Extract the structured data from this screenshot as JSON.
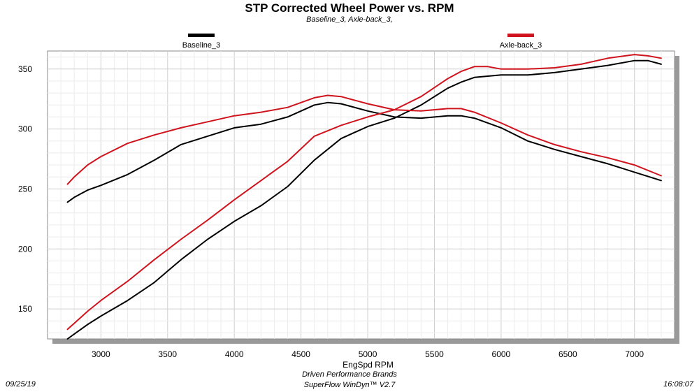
{
  "chart_data": {
    "type": "line",
    "title": "STP Corrected Wheel Power vs. RPM",
    "subtitle": "Baseline_3, Axle-back_3,",
    "xlabel": "EngSpd  RPM",
    "ylabel": "",
    "xlim": [
      2600,
      7300
    ],
    "ylim": [
      125,
      365
    ],
    "xticks": [
      3000,
      3500,
      4000,
      4500,
      5000,
      5500,
      6000,
      6500,
      7000
    ],
    "yticks": [
      150,
      200,
      250,
      300,
      350
    ],
    "grid": true,
    "legend_position": "top",
    "legend": [
      {
        "name": "Baseline_3",
        "color": "#000000"
      },
      {
        "name": "Axle-back_3",
        "color": "#d0141e"
      }
    ],
    "series": [
      {
        "name": "Baseline_3",
        "color": "#000000",
        "x": [
          2750,
          2800,
          2900,
          3000,
          3200,
          3400,
          3600,
          3800,
          4000,
          4200,
          4400,
          4600,
          4700,
          4800,
          5000,
          5200,
          5400,
          5600,
          5700,
          5800,
          6000,
          6200,
          6400,
          6600,
          6800,
          7000,
          7200
        ],
        "y": [
          239,
          243,
          249,
          253,
          262,
          274,
          287,
          294,
          301,
          304,
          310,
          320,
          322,
          321,
          315,
          310,
          309,
          311,
          311,
          309,
          301,
          290,
          283,
          277,
          271,
          264,
          257
        ]
      },
      {
        "name": "Baseline_3 power",
        "color": "#000000",
        "x": [
          2750,
          2800,
          2900,
          3000,
          3200,
          3400,
          3600,
          3800,
          4000,
          4200,
          4400,
          4600,
          4800,
          5000,
          5200,
          5400,
          5600,
          5700,
          5800,
          6000,
          6200,
          6400,
          6600,
          6800,
          7000,
          7100,
          7200
        ],
        "y": [
          125,
          129,
          137,
          144,
          157,
          172,
          191,
          208,
          223,
          236,
          252,
          274,
          292,
          302,
          309,
          320,
          334,
          339,
          343,
          345,
          345,
          347,
          350,
          353,
          357,
          357,
          354
        ]
      },
      {
        "name": "Axle-back_3",
        "color": "#d0141e",
        "x": [
          2750,
          2800,
          2900,
          3000,
          3200,
          3400,
          3600,
          3800,
          4000,
          4200,
          4400,
          4600,
          4700,
          4800,
          5000,
          5200,
          5400,
          5600,
          5700,
          5800,
          6000,
          6200,
          6400,
          6600,
          6800,
          7000,
          7200
        ],
        "y": [
          254,
          260,
          270,
          277,
          288,
          295,
          301,
          306,
          311,
          314,
          318,
          326,
          328,
          327,
          321,
          316,
          315,
          317,
          317,
          314,
          305,
          295,
          287,
          281,
          276,
          270,
          261
        ]
      },
      {
        "name": "Axle-back_3 power",
        "color": "#d0141e",
        "x": [
          2750,
          2800,
          2900,
          3000,
          3200,
          3400,
          3600,
          3800,
          4000,
          4200,
          4400,
          4600,
          4800,
          5000,
          5200,
          5400,
          5600,
          5700,
          5800,
          5900,
          6000,
          6200,
          6400,
          6600,
          6800,
          7000,
          7100,
          7200
        ],
        "y": [
          133,
          138,
          148,
          157,
          173,
          191,
          208,
          224,
          241,
          257,
          273,
          294,
          303,
          310,
          316,
          327,
          342,
          348,
          352,
          352,
          350,
          350,
          351,
          354,
          359,
          362,
          361,
          359
        ]
      }
    ]
  },
  "footer": {
    "date": "09/25/19",
    "company": "Driven Performance Brands",
    "software": "SuperFlow WinDyn™ V2.7",
    "time": "16:08:07"
  }
}
